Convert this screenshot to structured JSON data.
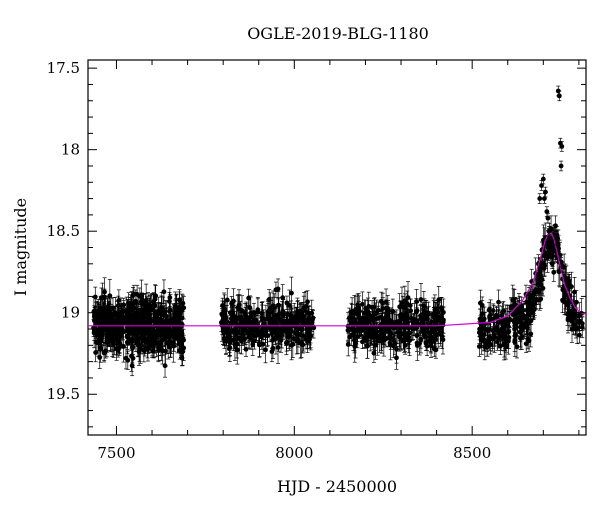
{
  "chart_data": {
    "type": "scatter",
    "title": "OGLE-2019-BLG-1180",
    "xlabel": "HJD - 2450000",
    "ylabel": "I magnitude",
    "xlim": [
      7420,
      8820
    ],
    "ylim": [
      19.75,
      17.45
    ],
    "y_inverted": true,
    "grid": false,
    "x_ticks": [
      7500,
      8000,
      8500
    ],
    "x_tick_labels": [
      "7500",
      "8000",
      "8500"
    ],
    "y_ticks": [
      17.5,
      18,
      18.5,
      19,
      19.5
    ],
    "y_tick_labels": [
      "17.5",
      "18",
      "18.5",
      "19",
      "19.5"
    ],
    "marker_color": "#000000",
    "model_color": "#d400d4",
    "seasons": [
      {
        "start": 7435,
        "end": 7690,
        "mean_mag": 19.08,
        "scatter": 0.12
      },
      {
        "start": 7795,
        "end": 8055,
        "mean_mag": 19.08,
        "scatter": 0.1
      },
      {
        "start": 8150,
        "end": 8420,
        "mean_mag": 19.08,
        "scatter": 0.1
      },
      {
        "start": 8520,
        "end": 8810,
        "mean_mag": 19.08,
        "scatter": 0.1
      }
    ],
    "series": [
      {
        "type": "line",
        "role": "model",
        "x": [
          7420,
          8400,
          8550,
          8600,
          8640,
          8670,
          8690,
          8705,
          8715,
          8722,
          8730,
          8740,
          8750,
          8760,
          8775,
          8790,
          8805,
          8820
        ],
        "y": [
          19.08,
          19.08,
          19.06,
          19.02,
          18.93,
          18.82,
          18.68,
          18.56,
          18.51,
          18.51,
          18.55,
          18.64,
          18.74,
          18.83,
          18.91,
          18.97,
          19.0,
          19.01
        ]
      },
      {
        "type": "scatter",
        "role": "peak-points",
        "x": [
          8690,
          8695,
          8700,
          8703,
          8706,
          8710,
          8713,
          8716,
          8720,
          8725,
          8730,
          8738,
          8742,
          8745,
          8748,
          8750,
          8752,
          8755,
          8760,
          8768,
          8780,
          8790
        ],
        "y": [
          18.3,
          18.22,
          18.18,
          18.3,
          18.26,
          18.38,
          18.42,
          18.5,
          18.6,
          18.7,
          18.62,
          18.55,
          17.64,
          17.67,
          17.96,
          18.1,
          17.98,
          18.72,
          18.9,
          18.95,
          19.05,
          19.1
        ]
      }
    ]
  }
}
